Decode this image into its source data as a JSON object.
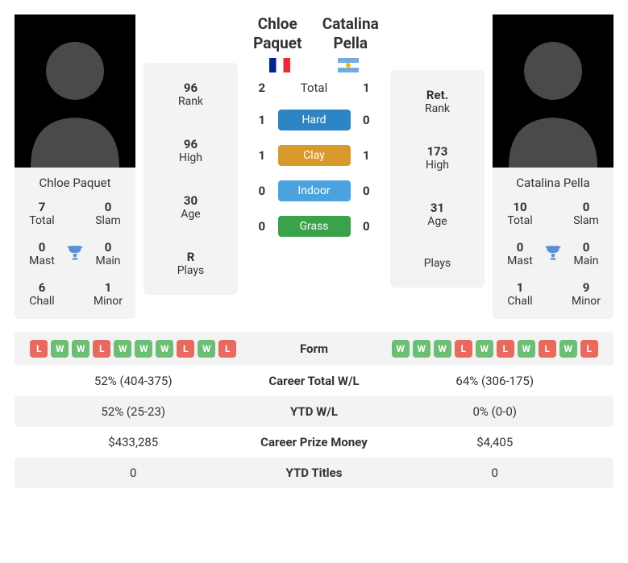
{
  "colors": {
    "bg_card": "#f3f3f3",
    "text": "#333333",
    "hard": "#2d85c5",
    "clay": "#d89a2b",
    "indoor": "#4aa3df",
    "grass": "#3aa24a",
    "win": "#6bbf73",
    "loss": "#e9695f",
    "trophy": "#5a8fd6"
  },
  "player1": {
    "name": "Chloe Paquet",
    "flag": {
      "stripes": [
        "#002395",
        "#ffffff",
        "#ed2939"
      ],
      "orientation": "vertical"
    },
    "card_name": "Chloe Paquet",
    "card_stats": {
      "total": {
        "val": "7",
        "lbl": "Total"
      },
      "slam": {
        "val": "0",
        "lbl": "Slam"
      },
      "mast": {
        "val": "0",
        "lbl": "Mast"
      },
      "main": {
        "val": "0",
        "lbl": "Main"
      },
      "chall": {
        "val": "6",
        "lbl": "Chall"
      },
      "minor": {
        "val": "1",
        "lbl": "Minor"
      }
    },
    "info": {
      "rank": {
        "val": "96",
        "lbl": "Rank"
      },
      "high": {
        "val": "96",
        "lbl": "High"
      },
      "age": {
        "val": "30",
        "lbl": "Age"
      },
      "plays": {
        "val": "R",
        "lbl": "Plays"
      }
    },
    "form": [
      "L",
      "W",
      "W",
      "L",
      "W",
      "W",
      "W",
      "L",
      "W",
      "L"
    ]
  },
  "player2": {
    "name": "Catalina Pella",
    "flag": {
      "stripes": [
        "#74acdf",
        "#ffffff",
        "#74acdf"
      ],
      "orientation": "horizontal",
      "sun": "#f6b40e"
    },
    "card_name": "Catalina Pella",
    "card_stats": {
      "total": {
        "val": "10",
        "lbl": "Total"
      },
      "slam": {
        "val": "0",
        "lbl": "Slam"
      },
      "mast": {
        "val": "0",
        "lbl": "Mast"
      },
      "main": {
        "val": "0",
        "lbl": "Main"
      },
      "chall": {
        "val": "1",
        "lbl": "Chall"
      },
      "minor": {
        "val": "9",
        "lbl": "Minor"
      }
    },
    "info": {
      "rank": {
        "val": "Ret.",
        "lbl": "Rank"
      },
      "high": {
        "val": "173",
        "lbl": "High"
      },
      "age": {
        "val": "31",
        "lbl": "Age"
      },
      "plays": {
        "val": "",
        "lbl": "Plays"
      }
    },
    "form": [
      "W",
      "W",
      "W",
      "L",
      "W",
      "L",
      "W",
      "L",
      "W",
      "L"
    ]
  },
  "h2h": {
    "rows": [
      {
        "l": "2",
        "label": "Total",
        "r": "1",
        "chip": false
      },
      {
        "l": "1",
        "label": "Hard",
        "r": "0",
        "chip": true,
        "color": "#2d85c5"
      },
      {
        "l": "1",
        "label": "Clay",
        "r": "1",
        "chip": true,
        "color": "#d89a2b"
      },
      {
        "l": "0",
        "label": "Indoor",
        "r": "0",
        "chip": true,
        "color": "#4aa3df"
      },
      {
        "l": "0",
        "label": "Grass",
        "r": "0",
        "chip": true,
        "color": "#3aa24a"
      }
    ]
  },
  "table": [
    {
      "label": "Form"
    },
    {
      "l": "52% (404-375)",
      "label": "Career Total W/L",
      "r": "64% (306-175)"
    },
    {
      "l": "52% (25-23)",
      "label": "YTD W/L",
      "r": "0% (0-0)"
    },
    {
      "l": "$433,285",
      "label": "Career Prize Money",
      "r": "$4,405"
    },
    {
      "l": "0",
      "label": "YTD Titles",
      "r": "0"
    }
  ]
}
